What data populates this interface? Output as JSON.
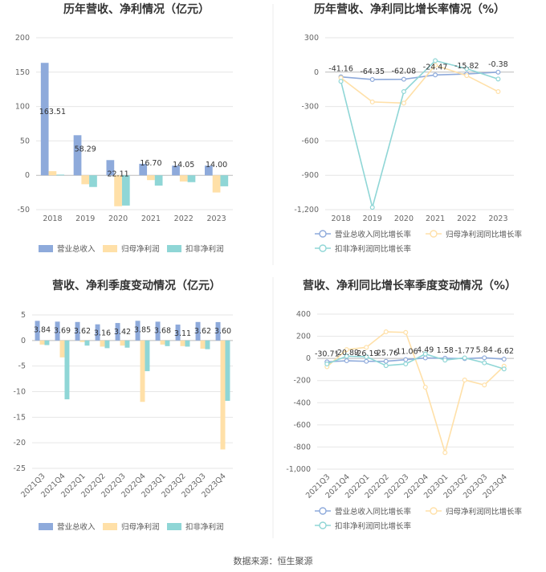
{
  "colors": {
    "revenue": "#8eaadb",
    "parent": "#ffe0a8",
    "deduct": "#8fd6d6",
    "grid": "#e6e6e6",
    "axis": "#999999"
  },
  "footer": {
    "source": "数据来源：恒生聚源"
  },
  "chart_data": [
    {
      "type": "bar",
      "title": "历年营收、净利情况（亿元）",
      "categories": [
        "2018",
        "2019",
        "2020",
        "2021",
        "2022",
        "2023"
      ],
      "ylim": [
        -50,
        200
      ],
      "yticks": [
        -50,
        0,
        50,
        100,
        150,
        200
      ],
      "series": [
        {
          "name": "营业总收入",
          "values": [
            163.51,
            58.29,
            22.11,
            16.7,
            14.05,
            14.0
          ],
          "labels": [
            "163.51",
            "58.29",
            "22.11",
            "16.70",
            "14.05",
            "14.00"
          ]
        },
        {
          "name": "归母净利润",
          "values": [
            6,
            -13,
            -45,
            -7,
            -9,
            -25
          ]
        },
        {
          "name": "扣非净利润",
          "values": [
            1,
            -17,
            -44,
            -15,
            -10,
            -16
          ]
        }
      ],
      "legend": "bottom"
    },
    {
      "type": "line",
      "title": "历年营收、净利同比增长率情况（%）",
      "categories": [
        "2018",
        "2019",
        "2020",
        "2021",
        "2022",
        "2023"
      ],
      "ylim": [
        -1200,
        300
      ],
      "yticks": [
        -1200,
        -900,
        -600,
        -300,
        0,
        300
      ],
      "series": [
        {
          "name": "营业总收入同比增长率",
          "values": [
            -41.16,
            -64.35,
            -62.08,
            -24.47,
            -15.82,
            -0.38
          ],
          "labels": [
            "-41.16",
            "-64.35",
            "-62.08",
            "-24.47",
            "-15.82",
            "-0.38"
          ]
        },
        {
          "name": "归母净利润同比增长率",
          "values": [
            -50,
            -260,
            -270,
            60,
            -30,
            -170
          ]
        },
        {
          "name": "扣非净利润同比增长率",
          "values": [
            -80,
            -1180,
            -170,
            100,
            30,
            -60
          ]
        }
      ],
      "legend": "bottom"
    },
    {
      "type": "bar",
      "title": "营收、净利季度变动情况（亿元）",
      "categories": [
        "2021Q3",
        "2021Q4",
        "2022Q1",
        "2022Q2",
        "2022Q3",
        "2022Q4",
        "2023Q1",
        "2023Q2",
        "2023Q3",
        "2023Q4"
      ],
      "ylim": [
        -25,
        5
      ],
      "yticks": [
        -25,
        -20,
        -15,
        -10,
        -5,
        0,
        5
      ],
      "series": [
        {
          "name": "营业总收入",
          "values": [
            3.84,
            3.69,
            3.62,
            3.16,
            3.42,
            3.85,
            3.68,
            3.11,
            3.62,
            3.6
          ],
          "labels": [
            "3.84",
            "3.69",
            "3.62",
            "3.16",
            "3.42",
            "3.85",
            "3.68",
            "3.11",
            "3.62",
            "3.60"
          ]
        },
        {
          "name": "归母净利润",
          "values": [
            -0.8,
            -3.3,
            -0.3,
            -1.2,
            -1.0,
            -12.0,
            -0.8,
            -1.1,
            -1.6,
            -21.3
          ]
        },
        {
          "name": "扣非净利润",
          "values": [
            -0.9,
            -11.5,
            -1.0,
            -1.5,
            -1.4,
            -6.0,
            -1.1,
            -1.2,
            -1.7,
            -11.8
          ]
        }
      ],
      "legend": "bottom"
    },
    {
      "type": "line",
      "title": "营收、净利同比增长率季度变动情况（%）",
      "categories": [
        "2021Q3",
        "2021Q4",
        "2022Q1",
        "2022Q2",
        "2022Q3",
        "2022Q4",
        "2023Q1",
        "2023Q2",
        "2023Q3",
        "2023Q4"
      ],
      "ylim": [
        -1000,
        400
      ],
      "yticks": [
        -1000,
        -800,
        -600,
        -400,
        -200,
        0,
        200,
        400
      ],
      "series": [
        {
          "name": "营业总收入同比增长率",
          "values": [
            -30.71,
            -20.89,
            -26.19,
            -25.76,
            -11.06,
            4.49,
            1.58,
            -1.77,
            5.84,
            -6.62
          ],
          "labels": [
            "-30.71",
            "-20.89",
            "-26.19",
            "-25.76",
            "-11.06",
            "4.49",
            "1.58",
            "-1.77",
            "5.84",
            "-6.62"
          ]
        },
        {
          "name": "归母净利润同比增长率",
          "values": [
            -75,
            80,
            100,
            240,
            235,
            -260,
            -850,
            -195,
            -240,
            -70
          ]
        },
        {
          "name": "扣非净利润同比增长率",
          "values": [
            -50,
            20,
            15,
            -65,
            -50,
            40,
            -15,
            5,
            -40,
            -95
          ]
        }
      ],
      "legend": "bottom"
    }
  ]
}
